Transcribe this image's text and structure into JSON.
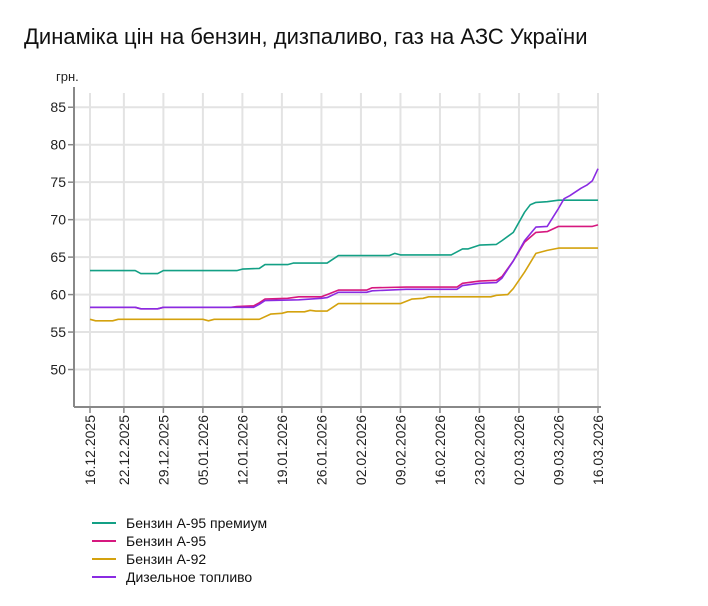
{
  "chart_data": {
    "type": "line",
    "title": "Динаміка цін на бензин, дизпаливо, газ на АЗС України",
    "ylabel": "грн.",
    "xlabel": "",
    "ylim": [
      45,
      87.7
    ],
    "xlim": [
      "16.12.2025",
      "16.03.2026"
    ],
    "yticks": [
      50,
      55,
      60,
      65,
      70,
      75,
      80,
      85
    ],
    "xticks": [
      "16.12.2025",
      "22.12.2025",
      "29.12.2025",
      "05.01.2026",
      "12.01.2026",
      "19.01.2026",
      "26.01.2026",
      "02.02.2026",
      "09.02.2026",
      "16.02.2026",
      "23.02.2026",
      "02.03.2026",
      "09.03.2026",
      "16.03.2026"
    ],
    "grid": true,
    "legend_position": "bottom-left",
    "series": [
      {
        "name": "Бензин А-95 премиум",
        "color": "#13a085",
        "points": [
          [
            "16.12.2025",
            63.2
          ],
          [
            "24.12.2025",
            63.2
          ],
          [
            "25.12.2025",
            62.8
          ],
          [
            "28.12.2025",
            62.8
          ],
          [
            "29.12.2025",
            63.2
          ],
          [
            "11.01.2026",
            63.2
          ],
          [
            "12.01.2026",
            63.4
          ],
          [
            "15.01.2026",
            63.5
          ],
          [
            "16.01.2026",
            64.0
          ],
          [
            "20.01.2026",
            64.0
          ],
          [
            "21.01.2026",
            64.2
          ],
          [
            "27.01.2026",
            64.2
          ],
          [
            "29.01.2026",
            65.2
          ],
          [
            "07.02.2026",
            65.2
          ],
          [
            "08.02.2026",
            65.5
          ],
          [
            "09.02.2026",
            65.3
          ],
          [
            "18.02.2026",
            65.3
          ],
          [
            "20.02.2026",
            66.1
          ],
          [
            "21.02.2026",
            66.1
          ],
          [
            "23.02.2026",
            66.6
          ],
          [
            "26.02.2026",
            66.7
          ],
          [
            "27.02.2026",
            67.2
          ],
          [
            "01.03.2026",
            68.3
          ],
          [
            "03.03.2026",
            71.0
          ],
          [
            "04.03.2026",
            72.0
          ],
          [
            "05.03.2026",
            72.3
          ],
          [
            "07.03.2026",
            72.4
          ],
          [
            "09.03.2026",
            72.6
          ],
          [
            "16.03.2026",
            72.6
          ]
        ]
      },
      {
        "name": "Бензин А-95",
        "color": "#d6187f",
        "points": [
          [
            "16.12.2025",
            58.3
          ],
          [
            "24.12.2025",
            58.3
          ],
          [
            "25.12.2025",
            58.1
          ],
          [
            "28.12.2025",
            58.1
          ],
          [
            "29.12.2025",
            58.3
          ],
          [
            "10.01.2026",
            58.3
          ],
          [
            "11.01.2026",
            58.4
          ],
          [
            "14.01.2026",
            58.5
          ],
          [
            "15.01.2026",
            58.9
          ],
          [
            "16.01.2026",
            59.4
          ],
          [
            "20.01.2026",
            59.5
          ],
          [
            "22.01.2026",
            59.7
          ],
          [
            "26.01.2026",
            59.7
          ],
          [
            "27.01.2026",
            60.0
          ],
          [
            "29.01.2026",
            60.6
          ],
          [
            "03.02.2026",
            60.6
          ],
          [
            "04.02.2026",
            60.9
          ],
          [
            "10.02.2026",
            61.0
          ],
          [
            "19.02.2026",
            61.0
          ],
          [
            "20.02.2026",
            61.5
          ],
          [
            "23.02.2026",
            61.8
          ],
          [
            "26.02.2026",
            61.9
          ],
          [
            "27.02.2026",
            62.4
          ],
          [
            "01.03.2026",
            64.5
          ],
          [
            "03.03.2026",
            67.0
          ],
          [
            "05.03.2026",
            68.3
          ],
          [
            "07.03.2026",
            68.4
          ],
          [
            "09.03.2026",
            69.1
          ],
          [
            "15.03.2026",
            69.1
          ],
          [
            "16.03.2026",
            69.3
          ]
        ]
      },
      {
        "name": "Бензин А-92",
        "color": "#d4a20e",
        "points": [
          [
            "16.12.2025",
            56.7
          ],
          [
            "17.12.2025",
            56.5
          ],
          [
            "20.12.2025",
            56.5
          ],
          [
            "21.12.2025",
            56.7
          ],
          [
            "05.01.2026",
            56.7
          ],
          [
            "06.01.2026",
            56.5
          ],
          [
            "07.01.2026",
            56.7
          ],
          [
            "15.01.2026",
            56.7
          ],
          [
            "17.01.2026",
            57.4
          ],
          [
            "19.01.2026",
            57.5
          ],
          [
            "20.01.2026",
            57.7
          ],
          [
            "23.01.2026",
            57.7
          ],
          [
            "24.01.2026",
            57.9
          ],
          [
            "25.01.2026",
            57.8
          ],
          [
            "27.01.2026",
            57.8
          ],
          [
            "29.01.2026",
            58.8
          ],
          [
            "09.02.2026",
            58.8
          ],
          [
            "11.02.2026",
            59.4
          ],
          [
            "13.02.2026",
            59.5
          ],
          [
            "14.02.2026",
            59.7
          ],
          [
            "25.02.2026",
            59.7
          ],
          [
            "26.02.2026",
            59.9
          ],
          [
            "28.02.2026",
            60.0
          ],
          [
            "01.03.2026",
            60.8
          ],
          [
            "03.03.2026",
            63.0
          ],
          [
            "05.03.2026",
            65.5
          ],
          [
            "07.03.2026",
            65.9
          ],
          [
            "09.03.2026",
            66.2
          ],
          [
            "16.03.2026",
            66.2
          ]
        ]
      },
      {
        "name": "Дизельное топливо",
        "color": "#8a2be2",
        "points": [
          [
            "16.12.2025",
            58.3
          ],
          [
            "24.12.2025",
            58.3
          ],
          [
            "25.12.2025",
            58.1
          ],
          [
            "28.12.2025",
            58.1
          ],
          [
            "29.12.2025",
            58.3
          ],
          [
            "14.01.2026",
            58.3
          ],
          [
            "15.01.2026",
            58.7
          ],
          [
            "16.01.2026",
            59.2
          ],
          [
            "22.01.2026",
            59.3
          ],
          [
            "26.01.2026",
            59.5
          ],
          [
            "27.01.2026",
            59.6
          ],
          [
            "29.01.2026",
            60.3
          ],
          [
            "03.02.2026",
            60.3
          ],
          [
            "04.02.2026",
            60.5
          ],
          [
            "10.02.2026",
            60.7
          ],
          [
            "19.02.2026",
            60.7
          ],
          [
            "20.02.2026",
            61.2
          ],
          [
            "23.02.2026",
            61.5
          ],
          [
            "26.02.2026",
            61.6
          ],
          [
            "27.02.2026",
            62.2
          ],
          [
            "01.03.2026",
            64.5
          ],
          [
            "03.03.2026",
            67.2
          ],
          [
            "05.03.2026",
            69.0
          ],
          [
            "07.03.2026",
            69.1
          ],
          [
            "09.03.2026",
            71.5
          ],
          [
            "10.03.2026",
            72.8
          ],
          [
            "11.03.2026",
            73.2
          ],
          [
            "13.03.2026",
            74.2
          ],
          [
            "14.03.2026",
            74.6
          ],
          [
            "15.03.2026",
            75.2
          ],
          [
            "16.03.2026",
            76.8
          ]
        ]
      }
    ]
  }
}
